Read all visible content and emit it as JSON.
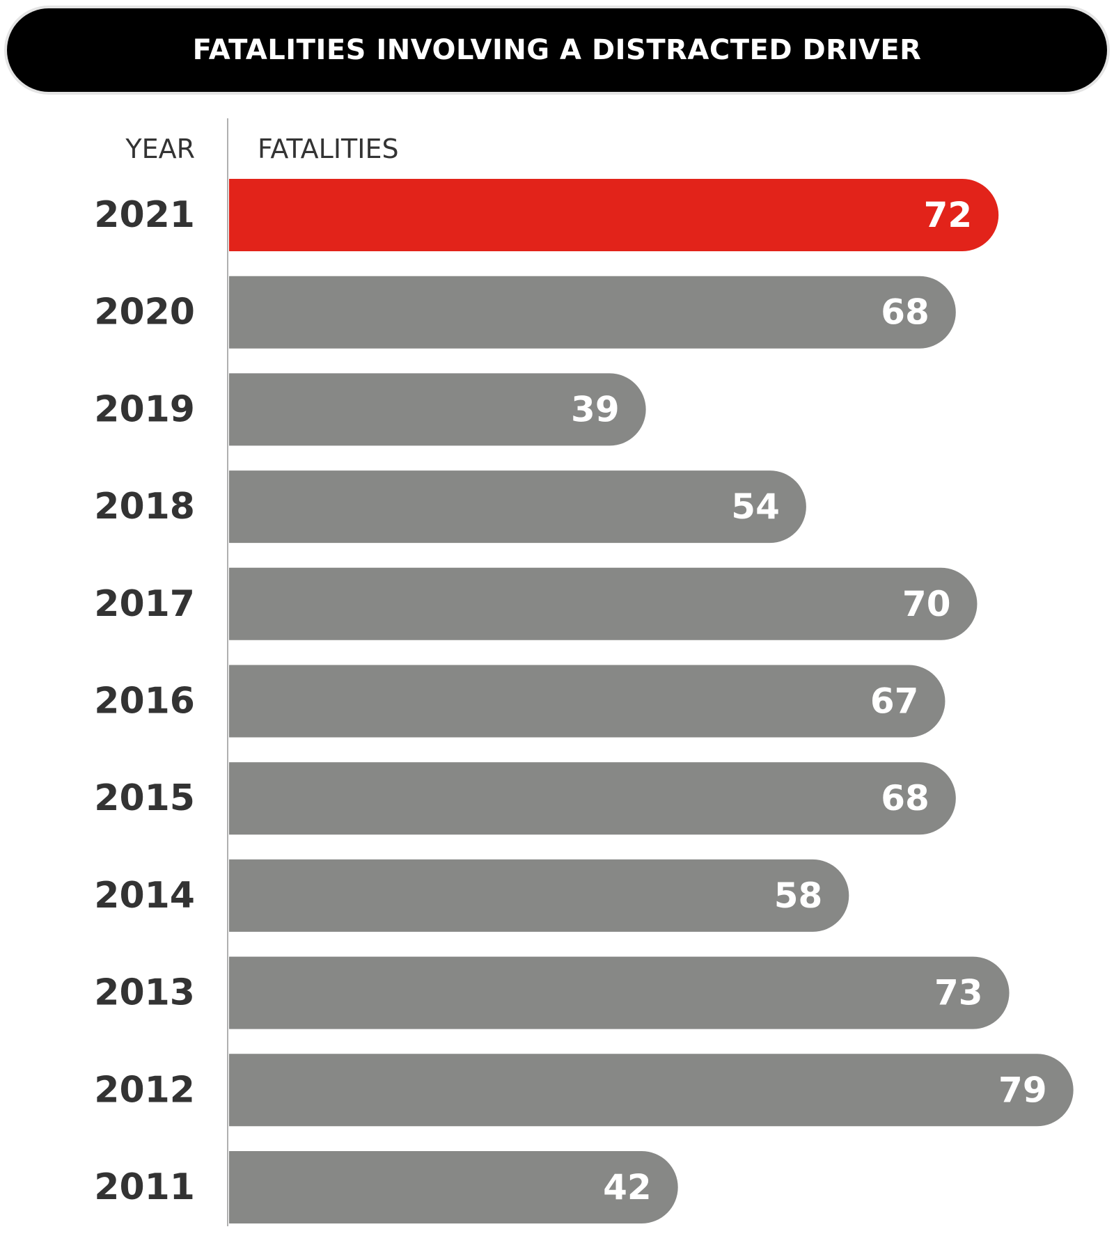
{
  "chart_data": {
    "type": "bar",
    "orientation": "horizontal",
    "title": "FATALITIES INVOLVING A DISTRACTED DRIVER",
    "category_header": "YEAR",
    "value_header": "FATALITIES",
    "categories": [
      "2021",
      "2020",
      "2019",
      "2018",
      "2017",
      "2016",
      "2015",
      "2014",
      "2013",
      "2012",
      "2011"
    ],
    "values": [
      72,
      68,
      39,
      54,
      70,
      67,
      68,
      58,
      73,
      79,
      42
    ],
    "highlight_category": "2021",
    "colors": {
      "highlight": "#e2231a",
      "bar": "#878886",
      "text": "#333333",
      "label": "#ffffff",
      "title_bg": "#000000"
    },
    "grid": false,
    "legend": "none"
  }
}
